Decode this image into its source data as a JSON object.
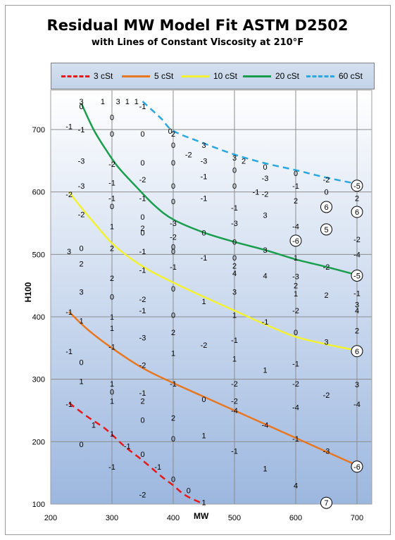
{
  "chart_data": {
    "type": "line",
    "title": "Residual MW Model Fit ASTM D2502",
    "subtitle": "with Lines of Constant Viscosity at 210°F",
    "xlabel": "MW",
    "ylabel": "H100",
    "xlim": [
      200,
      700
    ],
    "ylim": [
      100,
      750
    ],
    "x_ticks": [
      200,
      300,
      400,
      500,
      600,
      700
    ],
    "y_ticks": [
      100,
      200,
      300,
      400,
      500,
      600,
      700
    ],
    "grid": true,
    "legend_position": "top",
    "series": [
      {
        "name": "3 cSt",
        "color": "#e41a1c",
        "dash": "dashed",
        "x": [
          230,
          260,
          290,
          320,
          350,
          380,
          400,
          420,
          450
        ],
        "y": [
          262,
          240,
          220,
          193,
          170,
          145,
          130,
          114,
          100
        ]
      },
      {
        "name": "5 cSt",
        "color": "#e87722",
        "dash": "solid",
        "x": [
          230,
          260,
          300,
          350,
          400,
          450,
          500,
          550,
          600,
          650,
          700
        ],
        "y": [
          408,
          380,
          350,
          318,
          294,
          272,
          250,
          228,
          206,
          184,
          162
        ]
      },
      {
        "name": "10 cSt",
        "color": "#f2f232",
        "dash": "solid",
        "x": [
          230,
          250,
          280,
          300,
          330,
          360,
          400,
          450,
          500,
          550,
          600,
          650,
          700
        ],
        "y": [
          600,
          575,
          540,
          518,
          494,
          475,
          455,
          432,
          410,
          388,
          368,
          356,
          346
        ]
      },
      {
        "name": "20 cSt",
        "color": "#1a9e4e",
        "dash": "solid",
        "x": [
          250,
          270,
          290,
          310,
          340,
          370,
          400,
          450,
          500,
          550,
          600,
          650,
          700
        ],
        "y": [
          742,
          700,
          668,
          640,
          608,
          578,
          556,
          535,
          520,
          507,
          492,
          480,
          467
        ]
      },
      {
        "name": "60 cSt",
        "color": "#2ba8e0",
        "dash": "dashed",
        "x": [
          350,
          380,
          400,
          450,
          500,
          550,
          600,
          650,
          700
        ],
        "y": [
          745,
          718,
          698,
          678,
          660,
          646,
          635,
          623,
          613
        ]
      }
    ],
    "residuals": [
      {
        "x": 250,
        "y": 745,
        "label": "3"
      },
      {
        "x": 285,
        "y": 745,
        "label": "1"
      },
      {
        "x": 310,
        "y": 745,
        "label": "3"
      },
      {
        "x": 325,
        "y": 745,
        "label": "1"
      },
      {
        "x": 340,
        "y": 745,
        "label": "1"
      },
      {
        "x": 350,
        "y": 737,
        "label": "-1"
      },
      {
        "x": 250,
        "y": 737,
        "label": "0"
      },
      {
        "x": 300,
        "y": 720,
        "label": "0"
      },
      {
        "x": 230,
        "y": 705,
        "label": "-1"
      },
      {
        "x": 250,
        "y": 700,
        "label": "-1"
      },
      {
        "x": 300,
        "y": 693,
        "label": "0"
      },
      {
        "x": 350,
        "y": 693,
        "label": "0"
      },
      {
        "x": 395,
        "y": 698,
        "label": "0"
      },
      {
        "x": 400,
        "y": 693,
        "label": "2"
      },
      {
        "x": 400,
        "y": 675,
        "label": "0"
      },
      {
        "x": 450,
        "y": 675,
        "label": "3"
      },
      {
        "x": 425,
        "y": 660,
        "label": "-2"
      },
      {
        "x": 450,
        "y": 650,
        "label": "-3"
      },
      {
        "x": 500,
        "y": 655,
        "label": "3"
      },
      {
        "x": 515,
        "y": 650,
        "label": "2"
      },
      {
        "x": 550,
        "y": 640,
        "label": "0"
      },
      {
        "x": 600,
        "y": 630,
        "label": "0"
      },
      {
        "x": 650,
        "y": 620,
        "label": "-2"
      },
      {
        "x": 250,
        "y": 650,
        "label": "-3"
      },
      {
        "x": 300,
        "y": 645,
        "label": "-2"
      },
      {
        "x": 350,
        "y": 647,
        "label": "0"
      },
      {
        "x": 400,
        "y": 647,
        "label": "0"
      },
      {
        "x": 500,
        "y": 635,
        "label": "0"
      },
      {
        "x": 550,
        "y": 622,
        "label": "-3"
      },
      {
        "x": 600,
        "y": 610,
        "label": "-1"
      },
      {
        "x": 650,
        "y": 600,
        "label": "0"
      },
      {
        "x": 700,
        "y": 610,
        "label": "-5",
        "circled": true
      },
      {
        "x": 450,
        "y": 625,
        "label": "-1"
      },
      {
        "x": 250,
        "y": 610,
        "label": "-3"
      },
      {
        "x": 300,
        "y": 615,
        "label": "-1"
      },
      {
        "x": 350,
        "y": 620,
        "label": "-2"
      },
      {
        "x": 400,
        "y": 610,
        "label": "0"
      },
      {
        "x": 500,
        "y": 610,
        "label": "0"
      },
      {
        "x": 535,
        "y": 600,
        "label": "-1"
      },
      {
        "x": 550,
        "y": 597,
        "label": "-2"
      },
      {
        "x": 700,
        "y": 590,
        "label": "2"
      },
      {
        "x": 230,
        "y": 596,
        "label": "-2"
      },
      {
        "x": 300,
        "y": 590,
        "label": "-1"
      },
      {
        "x": 350,
        "y": 590,
        "label": "-1"
      },
      {
        "x": 400,
        "y": 585,
        "label": "0"
      },
      {
        "x": 450,
        "y": 590,
        "label": "-1"
      },
      {
        "x": 600,
        "y": 586,
        "label": "2"
      },
      {
        "x": 300,
        "y": 577,
        "label": "0"
      },
      {
        "x": 500,
        "y": 575,
        "label": "-1"
      },
      {
        "x": 650,
        "y": 576,
        "label": "6",
        "circled": true
      },
      {
        "x": 250,
        "y": 564,
        "label": "-2"
      },
      {
        "x": 350,
        "y": 560,
        "label": "0"
      },
      {
        "x": 550,
        "y": 563,
        "label": "3"
      },
      {
        "x": 700,
        "y": 568,
        "label": "6",
        "circled": true
      },
      {
        "x": 400,
        "y": 550,
        "label": "-3"
      },
      {
        "x": 500,
        "y": 550,
        "label": "-3"
      },
      {
        "x": 600,
        "y": 545,
        "label": "-4"
      },
      {
        "x": 300,
        "y": 545,
        "label": "1"
      },
      {
        "x": 350,
        "y": 542,
        "label": "2"
      },
      {
        "x": 650,
        "y": 540,
        "label": "5",
        "circled": true
      },
      {
        "x": 450,
        "y": 535,
        "label": "0"
      },
      {
        "x": 350,
        "y": 535,
        "label": "0"
      },
      {
        "x": 400,
        "y": 528,
        "label": "-2"
      },
      {
        "x": 600,
        "y": 524,
        "label": "2"
      },
      {
        "x": 600,
        "y": 522,
        "label": "-6",
        "circled": true
      },
      {
        "x": 700,
        "y": 524,
        "label": "-2"
      },
      {
        "x": 500,
        "y": 520,
        "label": "0"
      },
      {
        "x": 250,
        "y": 510,
        "label": "0"
      },
      {
        "x": 300,
        "y": 510,
        "label": "2"
      },
      {
        "x": 400,
        "y": 512,
        "label": "0"
      },
      {
        "x": 230,
        "y": 505,
        "label": "3"
      },
      {
        "x": 350,
        "y": 505,
        "label": "-1"
      },
      {
        "x": 400,
        "y": 505,
        "label": "0"
      },
      {
        "x": 550,
        "y": 507,
        "label": "3"
      },
      {
        "x": 700,
        "y": 500,
        "label": "-4"
      },
      {
        "x": 600,
        "y": 495,
        "label": "1"
      },
      {
        "x": 450,
        "y": 495,
        "label": "-1"
      },
      {
        "x": 500,
        "y": 495,
        "label": "0"
      },
      {
        "x": 650,
        "y": 480,
        "label": "-2"
      },
      {
        "x": 250,
        "y": 485,
        "label": "2"
      },
      {
        "x": 400,
        "y": 480,
        "label": "-1"
      },
      {
        "x": 500,
        "y": 482,
        "label": "2"
      },
      {
        "x": 350,
        "y": 475,
        "label": "-1"
      },
      {
        "x": 500,
        "y": 470,
        "label": "4"
      },
      {
        "x": 550,
        "y": 466,
        "label": "4"
      },
      {
        "x": 600,
        "y": 465,
        "label": "-3"
      },
      {
        "x": 700,
        "y": 466,
        "label": "-5",
        "circled": true
      },
      {
        "x": 300,
        "y": 462,
        "label": "2"
      },
      {
        "x": 600,
        "y": 450,
        "label": "2"
      },
      {
        "x": 400,
        "y": 445,
        "label": "0"
      },
      {
        "x": 250,
        "y": 440,
        "label": "3"
      },
      {
        "x": 500,
        "y": 440,
        "label": "3"
      },
      {
        "x": 600,
        "y": 437,
        "label": "1"
      },
      {
        "x": 650,
        "y": 435,
        "label": "2"
      },
      {
        "x": 700,
        "y": 438,
        "label": "-1"
      },
      {
        "x": 300,
        "y": 432,
        "label": "0"
      },
      {
        "x": 350,
        "y": 428,
        "label": "-2"
      },
      {
        "x": 450,
        "y": 425,
        "label": "1"
      },
      {
        "x": 700,
        "y": 420,
        "label": "3"
      },
      {
        "x": 230,
        "y": 408,
        "label": "-1"
      },
      {
        "x": 350,
        "y": 410,
        "label": "-1"
      },
      {
        "x": 600,
        "y": 410,
        "label": "-2"
      },
      {
        "x": 700,
        "y": 410,
        "label": "4"
      },
      {
        "x": 300,
        "y": 400,
        "label": "1"
      },
      {
        "x": 400,
        "y": 403,
        "label": "0"
      },
      {
        "x": 500,
        "y": 403,
        "label": "1"
      },
      {
        "x": 250,
        "y": 394,
        "label": "1"
      },
      {
        "x": 550,
        "y": 392,
        "label": "-1"
      },
      {
        "x": 300,
        "y": 382,
        "label": "1"
      },
      {
        "x": 400,
        "y": 375,
        "label": "2"
      },
      {
        "x": 600,
        "y": 375,
        "label": "0"
      },
      {
        "x": 700,
        "y": 378,
        "label": "2"
      },
      {
        "x": 350,
        "y": 367,
        "label": "-3"
      },
      {
        "x": 500,
        "y": 363,
        "label": "-1"
      },
      {
        "x": 650,
        "y": 360,
        "label": "3"
      },
      {
        "x": 300,
        "y": 352,
        "label": "-1"
      },
      {
        "x": 450,
        "y": 355,
        "label": "-2"
      },
      {
        "x": 700,
        "y": 345,
        "label": "6",
        "circled": true
      },
      {
        "x": 230,
        "y": 345,
        "label": "-1"
      },
      {
        "x": 400,
        "y": 342,
        "label": "1"
      },
      {
        "x": 500,
        "y": 333,
        "label": "1"
      },
      {
        "x": 250,
        "y": 327,
        "label": "0"
      },
      {
        "x": 350,
        "y": 323,
        "label": "-2"
      },
      {
        "x": 600,
        "y": 325,
        "label": "-1"
      },
      {
        "x": 550,
        "y": 315,
        "label": "1"
      },
      {
        "x": 250,
        "y": 297,
        "label": "1"
      },
      {
        "x": 300,
        "y": 293,
        "label": "1"
      },
      {
        "x": 400,
        "y": 293,
        "label": "-1"
      },
      {
        "x": 500,
        "y": 293,
        "label": "-2"
      },
      {
        "x": 600,
        "y": 293,
        "label": "-2"
      },
      {
        "x": 700,
        "y": 292,
        "label": "3"
      },
      {
        "x": 300,
        "y": 280,
        "label": "0"
      },
      {
        "x": 350,
        "y": 278,
        "label": "-1"
      },
      {
        "x": 450,
        "y": 268,
        "label": "0"
      },
      {
        "x": 650,
        "y": 275,
        "label": "-2"
      },
      {
        "x": 500,
        "y": 265,
        "label": "-2"
      },
      {
        "x": 300,
        "y": 265,
        "label": "1"
      },
      {
        "x": 350,
        "y": 265,
        "label": "2"
      },
      {
        "x": 230,
        "y": 260,
        "label": "-1"
      },
      {
        "x": 700,
        "y": 260,
        "label": "-4"
      },
      {
        "x": 600,
        "y": 255,
        "label": "-4"
      },
      {
        "x": 500,
        "y": 250,
        "label": "-4"
      },
      {
        "x": 350,
        "y": 235,
        "label": "0"
      },
      {
        "x": 400,
        "y": 238,
        "label": "2"
      },
      {
        "x": 270,
        "y": 227,
        "label": "1"
      },
      {
        "x": 550,
        "y": 227,
        "label": "-4"
      },
      {
        "x": 300,
        "y": 213,
        "label": "1"
      },
      {
        "x": 450,
        "y": 210,
        "label": "1"
      },
      {
        "x": 250,
        "y": 196,
        "label": "0"
      },
      {
        "x": 400,
        "y": 205,
        "label": "0"
      },
      {
        "x": 600,
        "y": 205,
        "label": "-1"
      },
      {
        "x": 325,
        "y": 193,
        "label": "-1"
      },
      {
        "x": 500,
        "y": 185,
        "label": "-1"
      },
      {
        "x": 350,
        "y": 180,
        "label": "0"
      },
      {
        "x": 650,
        "y": 185,
        "label": "-3"
      },
      {
        "x": 300,
        "y": 160,
        "label": "-1"
      },
      {
        "x": 375,
        "y": 160,
        "label": "-1"
      },
      {
        "x": 550,
        "y": 157,
        "label": "1"
      },
      {
        "x": 700,
        "y": 160,
        "label": "-6",
        "circled": true
      },
      {
        "x": 400,
        "y": 140,
        "label": "0"
      },
      {
        "x": 600,
        "y": 130,
        "label": "4"
      },
      {
        "x": 425,
        "y": 122,
        "label": "0"
      },
      {
        "x": 350,
        "y": 115,
        "label": "-2"
      },
      {
        "x": 450,
        "y": 103,
        "label": "1"
      },
      {
        "x": 650,
        "y": 102,
        "label": "7",
        "circled": true
      }
    ]
  }
}
